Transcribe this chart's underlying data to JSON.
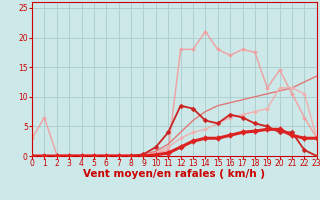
{
  "bg_color": "#cde8e8",
  "grid_color": "#aacccc",
  "xlabel": "Vent moyen/en rafales ( km/h )",
  "xlabel_color": "#cc0000",
  "xlabel_fontsize": 7.5,
  "tick_color": "#cc0000",
  "tick_fontsize": 5.5,
  "xlim": [
    0,
    23
  ],
  "ylim": [
    0,
    26
  ],
  "x_ticks": [
    0,
    1,
    2,
    3,
    4,
    5,
    6,
    7,
    8,
    9,
    10,
    11,
    12,
    13,
    14,
    15,
    16,
    17,
    18,
    19,
    20,
    21,
    22,
    23
  ],
  "y_ticks": [
    0,
    5,
    10,
    15,
    20,
    25
  ],
  "series": [
    {
      "x": [
        0,
        1,
        2,
        3,
        4,
        5,
        6,
        7,
        8,
        9,
        10,
        11,
        12,
        13,
        14,
        15,
        16,
        17,
        18,
        19,
        20,
        21,
        22,
        23
      ],
      "y": [
        3.0,
        6.5,
        0.2,
        0.2,
        0.2,
        0.2,
        0.2,
        0.2,
        0.2,
        0.2,
        0.5,
        1.0,
        18.0,
        18.0,
        21.0,
        18.0,
        17.0,
        18.0,
        17.5,
        11.5,
        14.5,
        10.5,
        6.5,
        3.0
      ],
      "color": "#f0a0a0",
      "lw": 1.0,
      "marker": "D",
      "ms": 2.0,
      "zorder": 2
    },
    {
      "x": [
        0,
        1,
        2,
        3,
        4,
        5,
        6,
        7,
        8,
        9,
        10,
        11,
        12,
        13,
        14,
        15,
        16,
        17,
        18,
        19,
        20,
        21,
        22,
        23
      ],
      "y": [
        0.0,
        0.0,
        0.0,
        0.0,
        0.0,
        0.0,
        0.0,
        0.0,
        0.0,
        0.3,
        0.8,
        2.0,
        4.0,
        6.0,
        7.5,
        8.5,
        9.0,
        9.5,
        10.0,
        10.5,
        11.0,
        11.5,
        12.5,
        13.5
      ],
      "color": "#e07878",
      "lw": 1.0,
      "marker": null,
      "ms": 0,
      "zorder": 2
    },
    {
      "x": [
        0,
        1,
        2,
        3,
        4,
        5,
        6,
        7,
        8,
        9,
        10,
        11,
        12,
        13,
        14,
        15,
        16,
        17,
        18,
        19,
        20,
        21,
        22,
        23
      ],
      "y": [
        0.0,
        0.0,
        0.0,
        0.0,
        0.0,
        0.0,
        0.0,
        0.0,
        0.0,
        0.3,
        1.5,
        4.0,
        8.5,
        8.0,
        6.0,
        5.5,
        7.0,
        6.5,
        5.5,
        5.0,
        4.0,
        4.0,
        1.0,
        0.0
      ],
      "color": "#cc2222",
      "lw": 1.3,
      "marker": "D",
      "ms": 2.5,
      "zorder": 3
    },
    {
      "x": [
        0,
        1,
        2,
        3,
        4,
        5,
        6,
        7,
        8,
        9,
        10,
        11,
        12,
        13,
        14,
        15,
        16,
        17,
        18,
        19,
        20,
        21,
        22,
        23
      ],
      "y": [
        0.0,
        0.0,
        0.0,
        0.0,
        0.0,
        0.0,
        0.0,
        0.0,
        0.0,
        0.2,
        0.5,
        1.5,
        3.0,
        4.0,
        4.5,
        5.5,
        6.5,
        7.0,
        7.5,
        8.0,
        11.5,
        11.5,
        10.5,
        3.0
      ],
      "color": "#f0b0b0",
      "lw": 1.0,
      "marker": "D",
      "ms": 2.0,
      "zorder": 2
    },
    {
      "x": [
        0,
        1,
        2,
        3,
        4,
        5,
        6,
        7,
        8,
        9,
        10,
        11,
        12,
        13,
        14,
        15,
        16,
        17,
        18,
        19,
        20,
        21,
        22,
        23
      ],
      "y": [
        0.0,
        0.0,
        0.0,
        0.0,
        0.0,
        0.0,
        0.0,
        0.0,
        0.0,
        0.0,
        0.2,
        0.5,
        1.5,
        2.5,
        3.0,
        3.0,
        3.5,
        4.0,
        4.2,
        4.5,
        4.5,
        3.5,
        3.0,
        3.0
      ],
      "color": "#dd2222",
      "lw": 2.2,
      "marker": "D",
      "ms": 3.0,
      "zorder": 4
    }
  ]
}
